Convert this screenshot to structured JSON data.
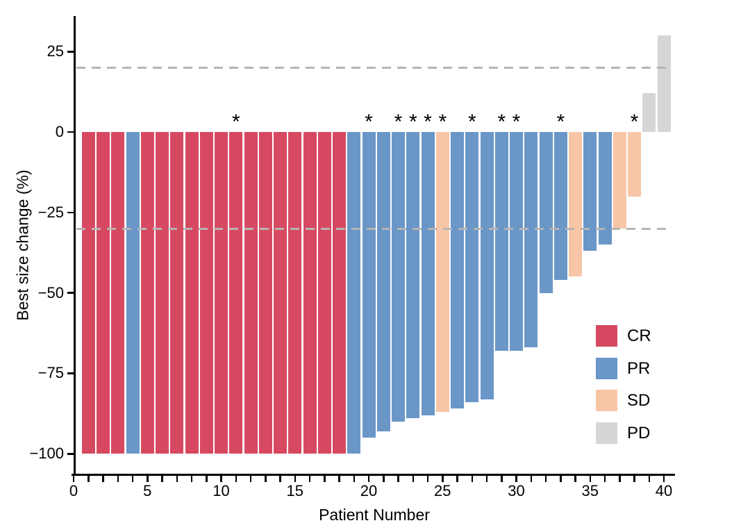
{
  "chart_data": {
    "type": "bar",
    "subtype": "waterfall",
    "title": "",
    "xlabel": "Patient Number",
    "ylabel": "Best size change (%)",
    "xlim": [
      0,
      40.9
    ],
    "ylim": [
      -106,
      38
    ],
    "grid": "off",
    "legend_position": "inside-right",
    "star_symbol": "*",
    "reference_lines": [
      20,
      -30
    ],
    "y_ticks": [
      {
        "value": 25,
        "label": "25"
      },
      {
        "value": 0,
        "label": "0"
      },
      {
        "value": -25,
        "label": "−25"
      },
      {
        "value": -50,
        "label": "−50"
      },
      {
        "value": -75,
        "label": "−75"
      },
      {
        "value": -100,
        "label": "−100"
      }
    ],
    "x_major_ticks": [
      {
        "value": 0,
        "label": "0"
      },
      {
        "value": 5,
        "label": "5"
      },
      {
        "value": 10,
        "label": "10"
      },
      {
        "value": 15,
        "label": "15"
      },
      {
        "value": 20,
        "label": "20"
      },
      {
        "value": 25,
        "label": "25"
      },
      {
        "value": 30,
        "label": "30"
      },
      {
        "value": 35,
        "label": "35"
      },
      {
        "value": 40,
        "label": "40"
      }
    ],
    "x_minor_step": 1,
    "colors": {
      "CR": "#d74961",
      "PR": "#6a96c8",
      "SD": "#f7c6a7",
      "PD": "#d6d6d6",
      "reference_line": "#b5b5b5",
      "axis": "#000000"
    },
    "legend": {
      "items": [
        {
          "label": "CR",
          "color_key": "CR"
        },
        {
          "label": "PR",
          "color_key": "PR"
        },
        {
          "label": "SD",
          "color_key": "SD"
        },
        {
          "label": "PD",
          "color_key": "PD"
        }
      ]
    },
    "patients": [
      {
        "patient": 1,
        "value": -100,
        "response": "CR",
        "star": false
      },
      {
        "patient": 2,
        "value": -100,
        "response": "CR",
        "star": false
      },
      {
        "patient": 3,
        "value": -100,
        "response": "CR",
        "star": false
      },
      {
        "patient": 4,
        "value": -100,
        "response": "PR",
        "star": false
      },
      {
        "patient": 5,
        "value": -100,
        "response": "CR",
        "star": false
      },
      {
        "patient": 6,
        "value": -100,
        "response": "CR",
        "star": false
      },
      {
        "patient": 7,
        "value": -100,
        "response": "CR",
        "star": false
      },
      {
        "patient": 8,
        "value": -100,
        "response": "CR",
        "star": false
      },
      {
        "patient": 9,
        "value": -100,
        "response": "CR",
        "star": false
      },
      {
        "patient": 10,
        "value": -100,
        "response": "CR",
        "star": false
      },
      {
        "patient": 11,
        "value": -100,
        "response": "CR",
        "star": true
      },
      {
        "patient": 12,
        "value": -100,
        "response": "CR",
        "star": false
      },
      {
        "patient": 13,
        "value": -100,
        "response": "CR",
        "star": false
      },
      {
        "pat": 0,
        "patient": 14,
        "value": -100,
        "response": "CR",
        "star": false
      },
      {
        "patient": 15,
        "value": -100,
        "response": "CR",
        "star": false
      },
      {
        "patient": 16,
        "value": -100,
        "response": "CR",
        "star": false
      },
      {
        "patient": 17,
        "value": -100,
        "response": "CR",
        "star": false
      },
      {
        "patient": 18,
        "value": -100,
        "response": "CR",
        "star": false
      },
      {
        "patient": 19,
        "value": -100,
        "response": "PR",
        "star": false
      },
      {
        "patient": 20,
        "value": -95,
        "response": "PR",
        "star": true
      },
      {
        "patient": 21,
        "value": -93,
        "response": "PR",
        "star": false
      },
      {
        "patient": 22,
        "value": -90,
        "response": "PR",
        "star": true
      },
      {
        "patient": 23,
        "value": -89,
        "response": "PR",
        "star": true
      },
      {
        "patient": 24,
        "value": -88,
        "response": "PR",
        "star": true
      },
      {
        "patient": 25,
        "value": -87,
        "response": "SD",
        "star": true
      },
      {
        "patient": 26,
        "value": -86,
        "response": "PR",
        "star": false
      },
      {
        "patient": 27,
        "value": -84,
        "response": "PR",
        "star": true
      },
      {
        "patient": 28,
        "value": -83,
        "response": "PR",
        "star": false
      },
      {
        "patient": 29,
        "value": -68,
        "response": "PR",
        "star": true
      },
      {
        "patient": 30,
        "value": -68,
        "response": "PR",
        "star": true
      },
      {
        "patient": 31,
        "value": -67,
        "response": "PR",
        "star": false
      },
      {
        "patient": 32,
        "value": -50,
        "response": "PR",
        "star": false
      },
      {
        "patient": 33,
        "value": -46,
        "response": "PR",
        "star": true
      },
      {
        "patient": 34,
        "value": -45,
        "response": "SD",
        "star": false
      },
      {
        "patient": 35,
        "value": -37,
        "response": "PR",
        "star": false
      },
      {
        "patient": 36,
        "value": -35,
        "response": "PR",
        "star": false
      },
      {
        "patient": 37,
        "value": -30,
        "response": "SD",
        "star": false
      },
      {
        "patient": 38,
        "value": -20,
        "response": "SD",
        "star": true
      },
      {
        "patient": 39,
        "value": 12,
        "response": "PD",
        "star": false
      },
      {
        "patient": 40,
        "value": 30,
        "response": "PD",
        "star": false
      }
    ]
  }
}
